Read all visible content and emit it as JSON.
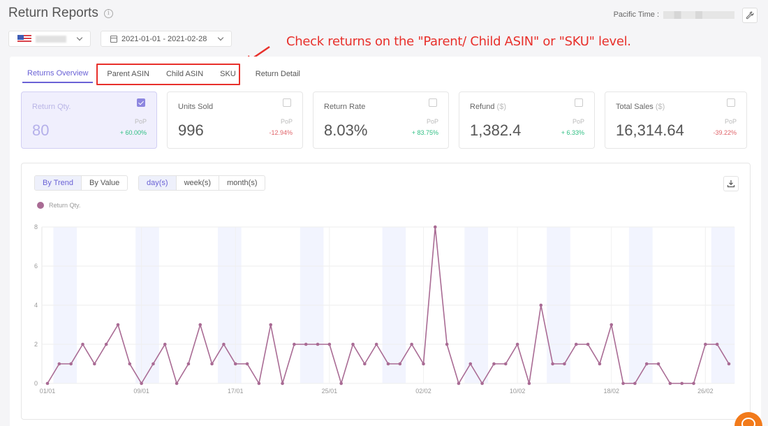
{
  "header": {
    "title": "Return Reports",
    "pacific_time_label": "Pacific Time :"
  },
  "filters": {
    "country": {
      "flag": "us-flag",
      "value_obscured": true
    },
    "date_range": "2021-01-01 - 2021-02-28"
  },
  "annotation": {
    "text": "Check returns on the \"Parent/ Child ASIN\" or \"SKU\" level.",
    "color": "#e8302b"
  },
  "tabs": [
    {
      "label": "Returns Overview",
      "active": true
    },
    {
      "label": "Parent ASIN",
      "active": false
    },
    {
      "label": "Child ASIN",
      "active": false
    },
    {
      "label": "SKU",
      "active": false
    },
    {
      "label": "Return Detail",
      "active": false
    }
  ],
  "kpis": [
    {
      "label": "Return Qty.",
      "unit": "",
      "value": "80",
      "pop_label": "PoP",
      "change": "+ 60.00%",
      "direction": "up",
      "checked": true
    },
    {
      "label": "Units Sold",
      "unit": "",
      "value": "996",
      "pop_label": "PoP",
      "change": "-12.94%",
      "direction": "down",
      "checked": false
    },
    {
      "label": "Return Rate",
      "unit": "",
      "value": "8.03%",
      "pop_label": "PoP",
      "change": "+ 83.75%",
      "direction": "up",
      "checked": false
    },
    {
      "label": "Refund",
      "unit": "($)",
      "value": "1,382.4",
      "pop_label": "PoP",
      "change": "+ 6.33%",
      "direction": "up",
      "checked": false
    },
    {
      "label": "Total Sales",
      "unit": "($)",
      "value": "16,314.64",
      "pop_label": "PoP",
      "change": "-39.22%",
      "direction": "down",
      "checked": false
    }
  ],
  "chart_controls": {
    "view_modes": [
      {
        "label": "By Trend",
        "active": true
      },
      {
        "label": "By Value",
        "active": false
      }
    ],
    "granularity": [
      {
        "label": "day(s)",
        "active": true
      },
      {
        "label": "week(s)",
        "active": false
      },
      {
        "label": "month(s)",
        "active": false
      }
    ]
  },
  "legend": {
    "label": "Return Qty.",
    "color": "#a96b94"
  },
  "chart_data": {
    "type": "line",
    "title": "",
    "xlabel": "",
    "ylabel": "",
    "ylim": [
      0,
      8
    ],
    "yticks": [
      0,
      2,
      4,
      6,
      8
    ],
    "xtick_labels": [
      "01/01",
      "09/01",
      "17/01",
      "25/01",
      "02/02",
      "10/02",
      "18/02",
      "26/02"
    ],
    "grid": true,
    "legend_position": "top-left",
    "weekend_shading": true,
    "series": [
      {
        "name": "Return Qty.",
        "color": "#a96b94",
        "x": [
          "01/01",
          "02/01",
          "03/01",
          "04/01",
          "05/01",
          "06/01",
          "07/01",
          "08/01",
          "09/01",
          "10/01",
          "11/01",
          "12/01",
          "13/01",
          "14/01",
          "15/01",
          "16/01",
          "17/01",
          "18/01",
          "19/01",
          "20/01",
          "21/01",
          "22/01",
          "23/01",
          "24/01",
          "25/01",
          "26/01",
          "27/01",
          "28/01",
          "29/01",
          "30/01",
          "31/01",
          "01/02",
          "02/02",
          "03/02",
          "04/02",
          "05/02",
          "06/02",
          "07/02",
          "08/02",
          "09/02",
          "10/02",
          "11/02",
          "12/02",
          "13/02",
          "14/02",
          "15/02",
          "16/02",
          "17/02",
          "18/02",
          "19/02",
          "20/02",
          "21/02",
          "22/02",
          "23/02",
          "24/02",
          "25/02",
          "26/02",
          "27/02",
          "28/02"
        ],
        "values": [
          0,
          1,
          1,
          2,
          1,
          2,
          3,
          1,
          0,
          1,
          2,
          0,
          1,
          3,
          1,
          2,
          1,
          1,
          0,
          3,
          0,
          2,
          2,
          2,
          2,
          0,
          2,
          1,
          2,
          1,
          1,
          2,
          1,
          8,
          2,
          0,
          1,
          0,
          1,
          1,
          2,
          0,
          4,
          1,
          1,
          2,
          2,
          1,
          3,
          0,
          0,
          1,
          1,
          0,
          0,
          0,
          2,
          2,
          1
        ]
      }
    ]
  }
}
